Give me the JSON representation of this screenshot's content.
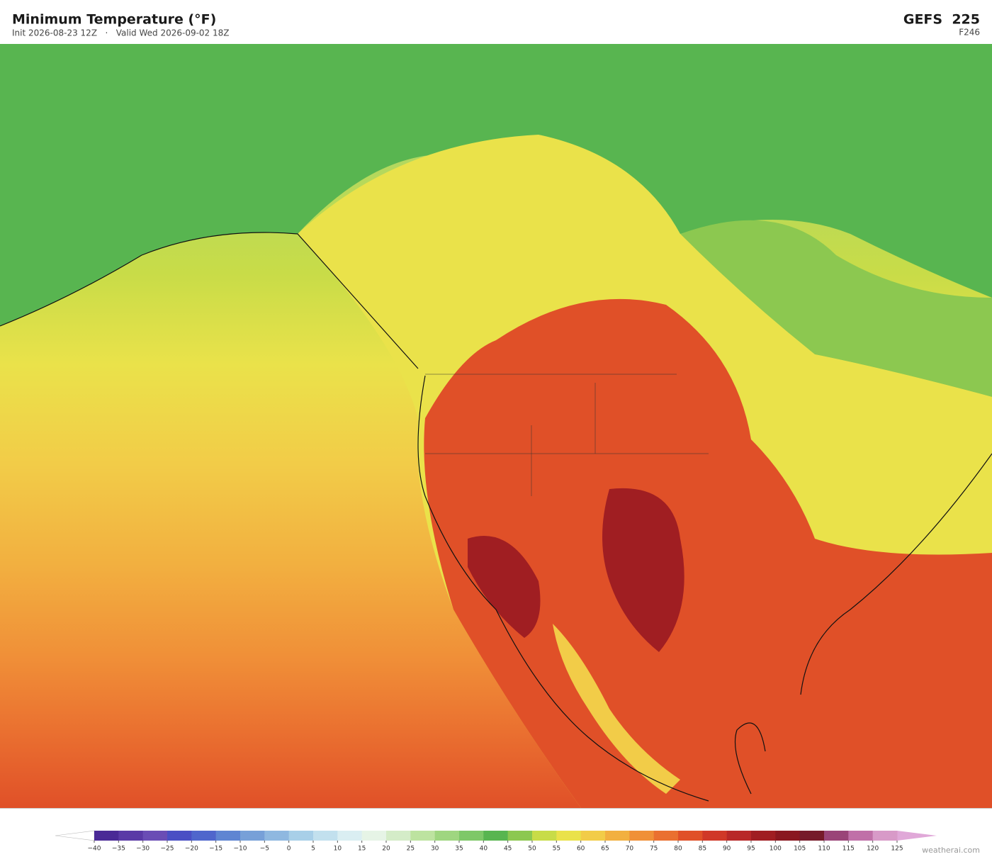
{
  "header": {
    "title": "Minimum Temperature  (°F)",
    "subtitle": "Init 2026-08-23 12Z   ·   Valid Wed 2026-09-02 18Z",
    "model": "GEFS  225",
    "forecast_hour": "F246"
  },
  "colorbar": {
    "ticks": [
      {
        "value": -40,
        "label": "−40"
      },
      {
        "value": -35,
        "label": "−35"
      },
      {
        "value": -30,
        "label": "−30"
      },
      {
        "value": -25,
        "label": "−25"
      },
      {
        "value": -20,
        "label": "−20"
      },
      {
        "value": -15,
        "label": "−15"
      },
      {
        "value": -10,
        "label": "−10"
      },
      {
        "value": -5,
        "label": "−5"
      },
      0,
      5,
      10,
      15,
      20,
      25,
      30,
      35,
      40,
      45,
      50,
      55,
      60,
      65,
      70,
      75,
      80,
      85,
      90,
      95,
      100,
      105,
      110,
      115,
      120,
      125
    ],
    "colors": [
      "#4a2a96",
      "#5a3aa6",
      "#6a4db5",
      "#4a4fc4",
      "#4f66cc",
      "#5f85d2",
      "#77a0d8",
      "#8fb8e0",
      "#a8cfe8",
      "#c2e0ee",
      "#daeef2",
      "#e6f4e6",
      "#d4ecc8",
      "#bde3a0",
      "#9fd680",
      "#7ec868",
      "#58b550",
      "#8cc850",
      "#c8dc48",
      "#eae24a",
      "#f2cc48",
      "#f2b040",
      "#f09038",
      "#ea7030",
      "#e05028",
      "#d03828",
      "#b82828",
      "#a01e22",
      "#8a1820",
      "#761a2a",
      "#9a4478",
      "#c070a8",
      "#d89ac8"
    ],
    "under_color": "#ffffff",
    "over_color": "#e0a8d8"
  },
  "footer": {
    "credit": "weatherai.com"
  }
}
